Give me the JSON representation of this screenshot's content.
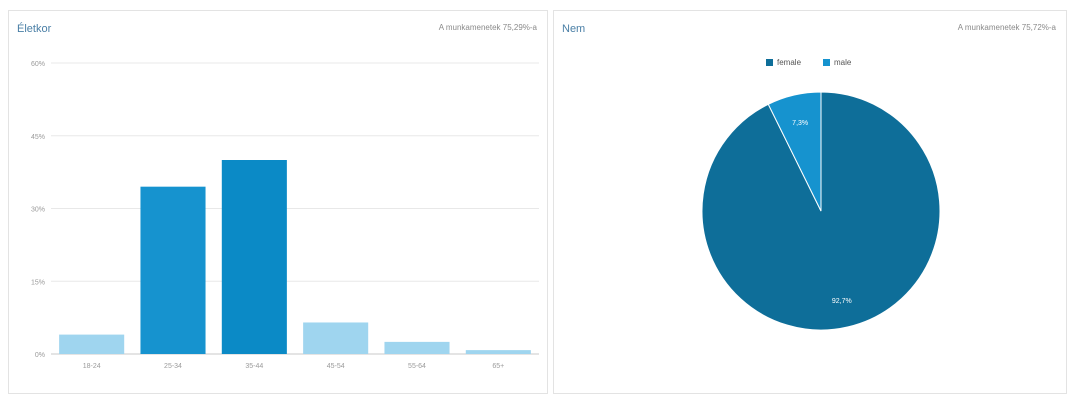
{
  "age_panel": {
    "title": "Életkor",
    "note": "A munkamenetek 75,29%-a"
  },
  "gender_panel": {
    "title": "Nem",
    "note": "A munkamenetek 75,72%-a"
  },
  "colors": {
    "dark_blue": "#0e6e99",
    "medium_blue": "#1693cf",
    "light_blue": "#9fd5ef",
    "grid": "#e8e8e8",
    "axis": "#c8c8c8"
  },
  "chart_data": [
    {
      "type": "bar",
      "title": "Életkor",
      "categories": [
        "18-24",
        "25-34",
        "35-44",
        "45-54",
        "55-64",
        "65+"
      ],
      "values": [
        4,
        34.5,
        40,
        6.5,
        2.5,
        0.8
      ],
      "bar_colors": [
        "#9fd5ef",
        "#1693cf",
        "#0b8ac6",
        "#9fd5ef",
        "#9fd5ef",
        "#9fd5ef"
      ],
      "ylim": [
        0,
        60
      ],
      "yticks": [
        0,
        15,
        30,
        45,
        60
      ],
      "ytick_labels": [
        "0%",
        "15%",
        "30%",
        "45%",
        "60%"
      ],
      "grid": true
    },
    {
      "type": "pie",
      "title": "Nem",
      "labels": [
        "female",
        "male"
      ],
      "values": [
        92.7,
        7.3
      ],
      "value_labels": [
        "92,7%",
        "7,3%"
      ],
      "colors": [
        "#0e6e99",
        "#1693cf"
      ],
      "legend": "top"
    }
  ]
}
